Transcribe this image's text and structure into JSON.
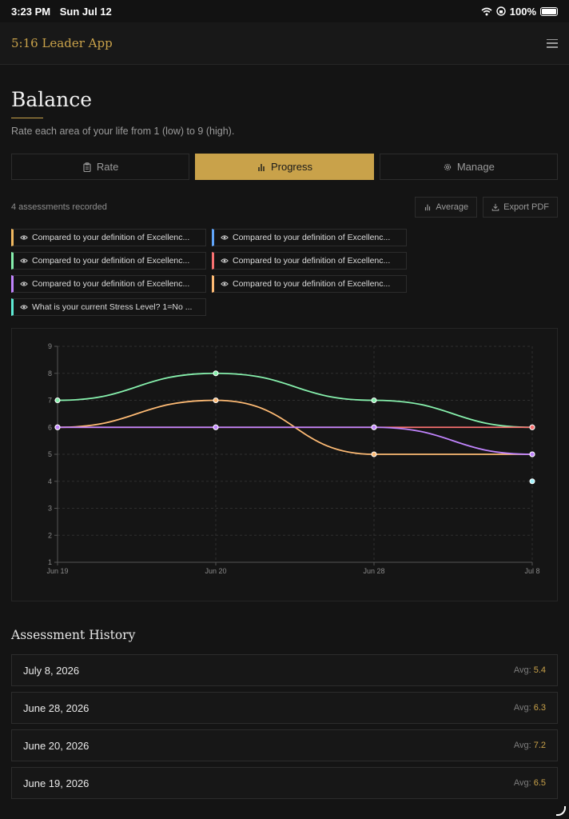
{
  "status_bar": {
    "time": "3:23 PM",
    "date": "Sun Jul 12",
    "battery": "100%"
  },
  "header": {
    "app_title": "5:16 Leader App",
    "menu_icon": "hamburger-menu-icon"
  },
  "page": {
    "title": "Balance",
    "subtitle": "Rate each area of your life from 1 (low) to 9 (high)."
  },
  "tabs": [
    {
      "label": "Rate",
      "icon": "clipboard-icon",
      "active": false
    },
    {
      "label": "Progress",
      "icon": "bar-chart-icon",
      "active": true
    },
    {
      "label": "Manage",
      "icon": "gear-icon",
      "active": false
    }
  ],
  "toolbar": {
    "count_text": "4 assessments recorded",
    "average_label": "Average",
    "export_label": "Export PDF"
  },
  "legend": [
    {
      "label": "Compared to your definition of Excellenc...",
      "color": "#f0b860"
    },
    {
      "label": "Compared to your definition of Excellenc...",
      "color": "#60a5fa"
    },
    {
      "label": "Compared to your definition of Excellenc...",
      "color": "#86efac"
    },
    {
      "label": "Compared to your definition of Excellenc...",
      "color": "#f87171"
    },
    {
      "label": "Compared to your definition of Excellenc...",
      "color": "#c084fc"
    },
    {
      "label": "Compared to your definition of Excellenc...",
      "color": "#fdba74"
    },
    {
      "label": "What is your current Stress Level? 1=No ...",
      "color": "#5eead4"
    }
  ],
  "chart_data": {
    "type": "line",
    "categories": [
      "Jun 19",
      "Jun 20",
      "Jun 28",
      "Jul 8"
    ],
    "ylim": [
      1,
      9
    ],
    "yticks": [
      1,
      2,
      3,
      4,
      5,
      6,
      7,
      8,
      9
    ],
    "grid": true,
    "series": [
      {
        "color": "#86efac",
        "values": [
          7,
          8,
          7,
          6
        ]
      },
      {
        "color": "#fdba74",
        "values": [
          6,
          7,
          5,
          5
        ]
      },
      {
        "color": "#f87171",
        "values": [
          6,
          6,
          6,
          6
        ]
      },
      {
        "color": "#c084fc",
        "values": [
          6,
          6,
          6,
          5
        ]
      },
      {
        "color": "#a5f3fc",
        "values": [
          null,
          null,
          null,
          4
        ]
      }
    ]
  },
  "history": {
    "title": "Assessment History",
    "avg_label": "Avg:",
    "rows": [
      {
        "date": "July 8, 2026",
        "avg": "5.4"
      },
      {
        "date": "June 28, 2026",
        "avg": "6.3"
      },
      {
        "date": "June 20, 2026",
        "avg": "7.2"
      },
      {
        "date": "June 19, 2026",
        "avg": "6.5"
      }
    ]
  }
}
